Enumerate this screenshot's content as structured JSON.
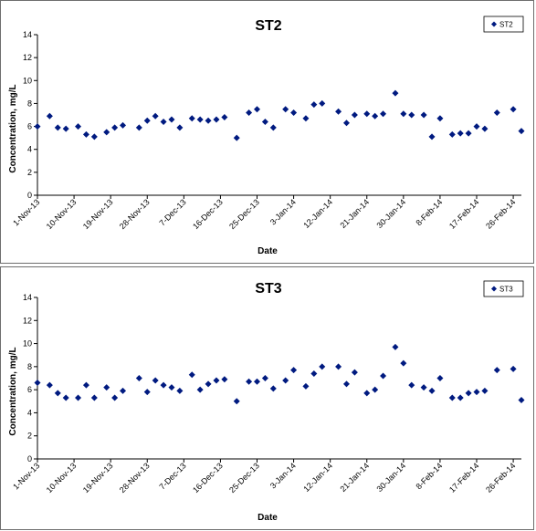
{
  "chart_data": [
    {
      "type": "scatter",
      "title": "ST2",
      "xlabel": "Date",
      "ylabel": "Concentration, mg/L",
      "ylim": [
        0,
        14
      ],
      "yticks": [
        0,
        2,
        4,
        6,
        8,
        10,
        12,
        14
      ],
      "xlim": [
        "1-Nov-13",
        "28-Feb-14"
      ],
      "xtick_labels": [
        "1-Nov-13",
        "10-Nov-13",
        "19-Nov-13",
        "28-Nov-13",
        "7-Dec-13",
        "16-Dec-13",
        "25-Dec-13",
        "3-Jan-14",
        "12-Jan-14",
        "21-Jan-14",
        "30-Jan-14",
        "8-Feb-14",
        "17-Feb-14",
        "26-Feb-14"
      ],
      "grid": false,
      "legend_position": "top-right",
      "marker_color": "#001A80",
      "series": [
        {
          "name": "ST2",
          "x": [
            "1-Nov-13",
            "4-Nov-13",
            "6-Nov-13",
            "8-Nov-13",
            "11-Nov-13",
            "13-Nov-13",
            "15-Nov-13",
            "18-Nov-13",
            "20-Nov-13",
            "22-Nov-13",
            "26-Nov-13",
            "28-Nov-13",
            "30-Nov-13",
            "2-Dec-13",
            "4-Dec-13",
            "6-Dec-13",
            "9-Dec-13",
            "11-Dec-13",
            "13-Dec-13",
            "15-Dec-13",
            "17-Dec-13",
            "20-Dec-13",
            "23-Dec-13",
            "25-Dec-13",
            "27-Dec-13",
            "29-Dec-13",
            "1-Jan-14",
            "3-Jan-14",
            "6-Jan-14",
            "8-Jan-14",
            "10-Jan-14",
            "14-Jan-14",
            "16-Jan-14",
            "18-Jan-14",
            "21-Jan-14",
            "23-Jan-14",
            "25-Jan-14",
            "28-Jan-14",
            "30-Jan-14",
            "1-Feb-14",
            "4-Feb-14",
            "6-Feb-14",
            "8-Feb-14",
            "11-Feb-14",
            "13-Feb-14",
            "15-Feb-14",
            "17-Feb-14",
            "19-Feb-14",
            "22-Feb-14",
            "26-Feb-14",
            "28-Feb-14"
          ],
          "y": [
            6.0,
            6.9,
            5.9,
            5.8,
            6.0,
            5.3,
            5.1,
            5.5,
            5.9,
            6.1,
            5.9,
            6.5,
            6.9,
            6.4,
            6.6,
            5.9,
            6.7,
            6.6,
            6.5,
            6.6,
            6.8,
            5.0,
            7.2,
            7.5,
            6.4,
            5.9,
            7.5,
            7.2,
            6.7,
            7.9,
            8.0,
            7.3,
            6.3,
            7.0,
            7.1,
            6.9,
            7.1,
            8.9,
            7.1,
            7.0,
            7.0,
            5.1,
            6.7,
            5.3,
            5.4,
            5.4,
            6.0,
            5.8,
            7.2,
            7.5,
            5.6
          ]
        }
      ]
    },
    {
      "type": "scatter",
      "title": "ST3",
      "xlabel": "Date",
      "ylabel": "Concentration, mg/L",
      "ylim": [
        0,
        14
      ],
      "yticks": [
        0,
        2,
        4,
        6,
        8,
        10,
        12,
        14
      ],
      "xlim": [
        "1-Nov-13",
        "28-Feb-14"
      ],
      "xtick_labels": [
        "1-Nov-13",
        "10-Nov-13",
        "19-Nov-13",
        "28-Nov-13",
        "7-Dec-13",
        "16-Dec-13",
        "25-Dec-13",
        "3-Jan-14",
        "12-Jan-14",
        "21-Jan-14",
        "30-Jan-14",
        "8-Feb-14",
        "17-Feb-14",
        "26-Feb-14"
      ],
      "grid": false,
      "legend_position": "top-right",
      "marker_color": "#001A80",
      "series": [
        {
          "name": "ST3",
          "x": [
            "1-Nov-13",
            "4-Nov-13",
            "6-Nov-13",
            "8-Nov-13",
            "11-Nov-13",
            "13-Nov-13",
            "15-Nov-13",
            "18-Nov-13",
            "20-Nov-13",
            "22-Nov-13",
            "26-Nov-13",
            "28-Nov-13",
            "30-Nov-13",
            "2-Dec-13",
            "4-Dec-13",
            "6-Dec-13",
            "9-Dec-13",
            "11-Dec-13",
            "13-Dec-13",
            "15-Dec-13",
            "17-Dec-13",
            "20-Dec-13",
            "23-Dec-13",
            "25-Dec-13",
            "27-Dec-13",
            "29-Dec-13",
            "1-Jan-14",
            "3-Jan-14",
            "6-Jan-14",
            "8-Jan-14",
            "10-Jan-14",
            "14-Jan-14",
            "16-Jan-14",
            "18-Jan-14",
            "21-Jan-14",
            "23-Jan-14",
            "25-Jan-14",
            "28-Jan-14",
            "30-Jan-14",
            "1-Feb-14",
            "4-Feb-14",
            "6-Feb-14",
            "8-Feb-14",
            "11-Feb-14",
            "13-Feb-14",
            "15-Feb-14",
            "17-Feb-14",
            "19-Feb-14",
            "22-Feb-14",
            "26-Feb-14",
            "28-Feb-14"
          ],
          "y": [
            6.6,
            6.4,
            5.7,
            5.3,
            5.3,
            6.4,
            5.3,
            6.2,
            5.3,
            5.9,
            7.0,
            5.8,
            6.8,
            6.4,
            6.2,
            5.9,
            7.3,
            6.0,
            6.5,
            6.8,
            6.9,
            5.0,
            6.7,
            6.7,
            7.0,
            6.1,
            6.8,
            7.7,
            6.3,
            7.4,
            8.0,
            8.0,
            6.5,
            7.5,
            5.7,
            6.0,
            7.2,
            9.7,
            8.3,
            6.4,
            6.2,
            5.9,
            7.0,
            5.3,
            5.3,
            5.7,
            5.8,
            5.9,
            7.7,
            7.8,
            5.1
          ]
        }
      ]
    }
  ]
}
